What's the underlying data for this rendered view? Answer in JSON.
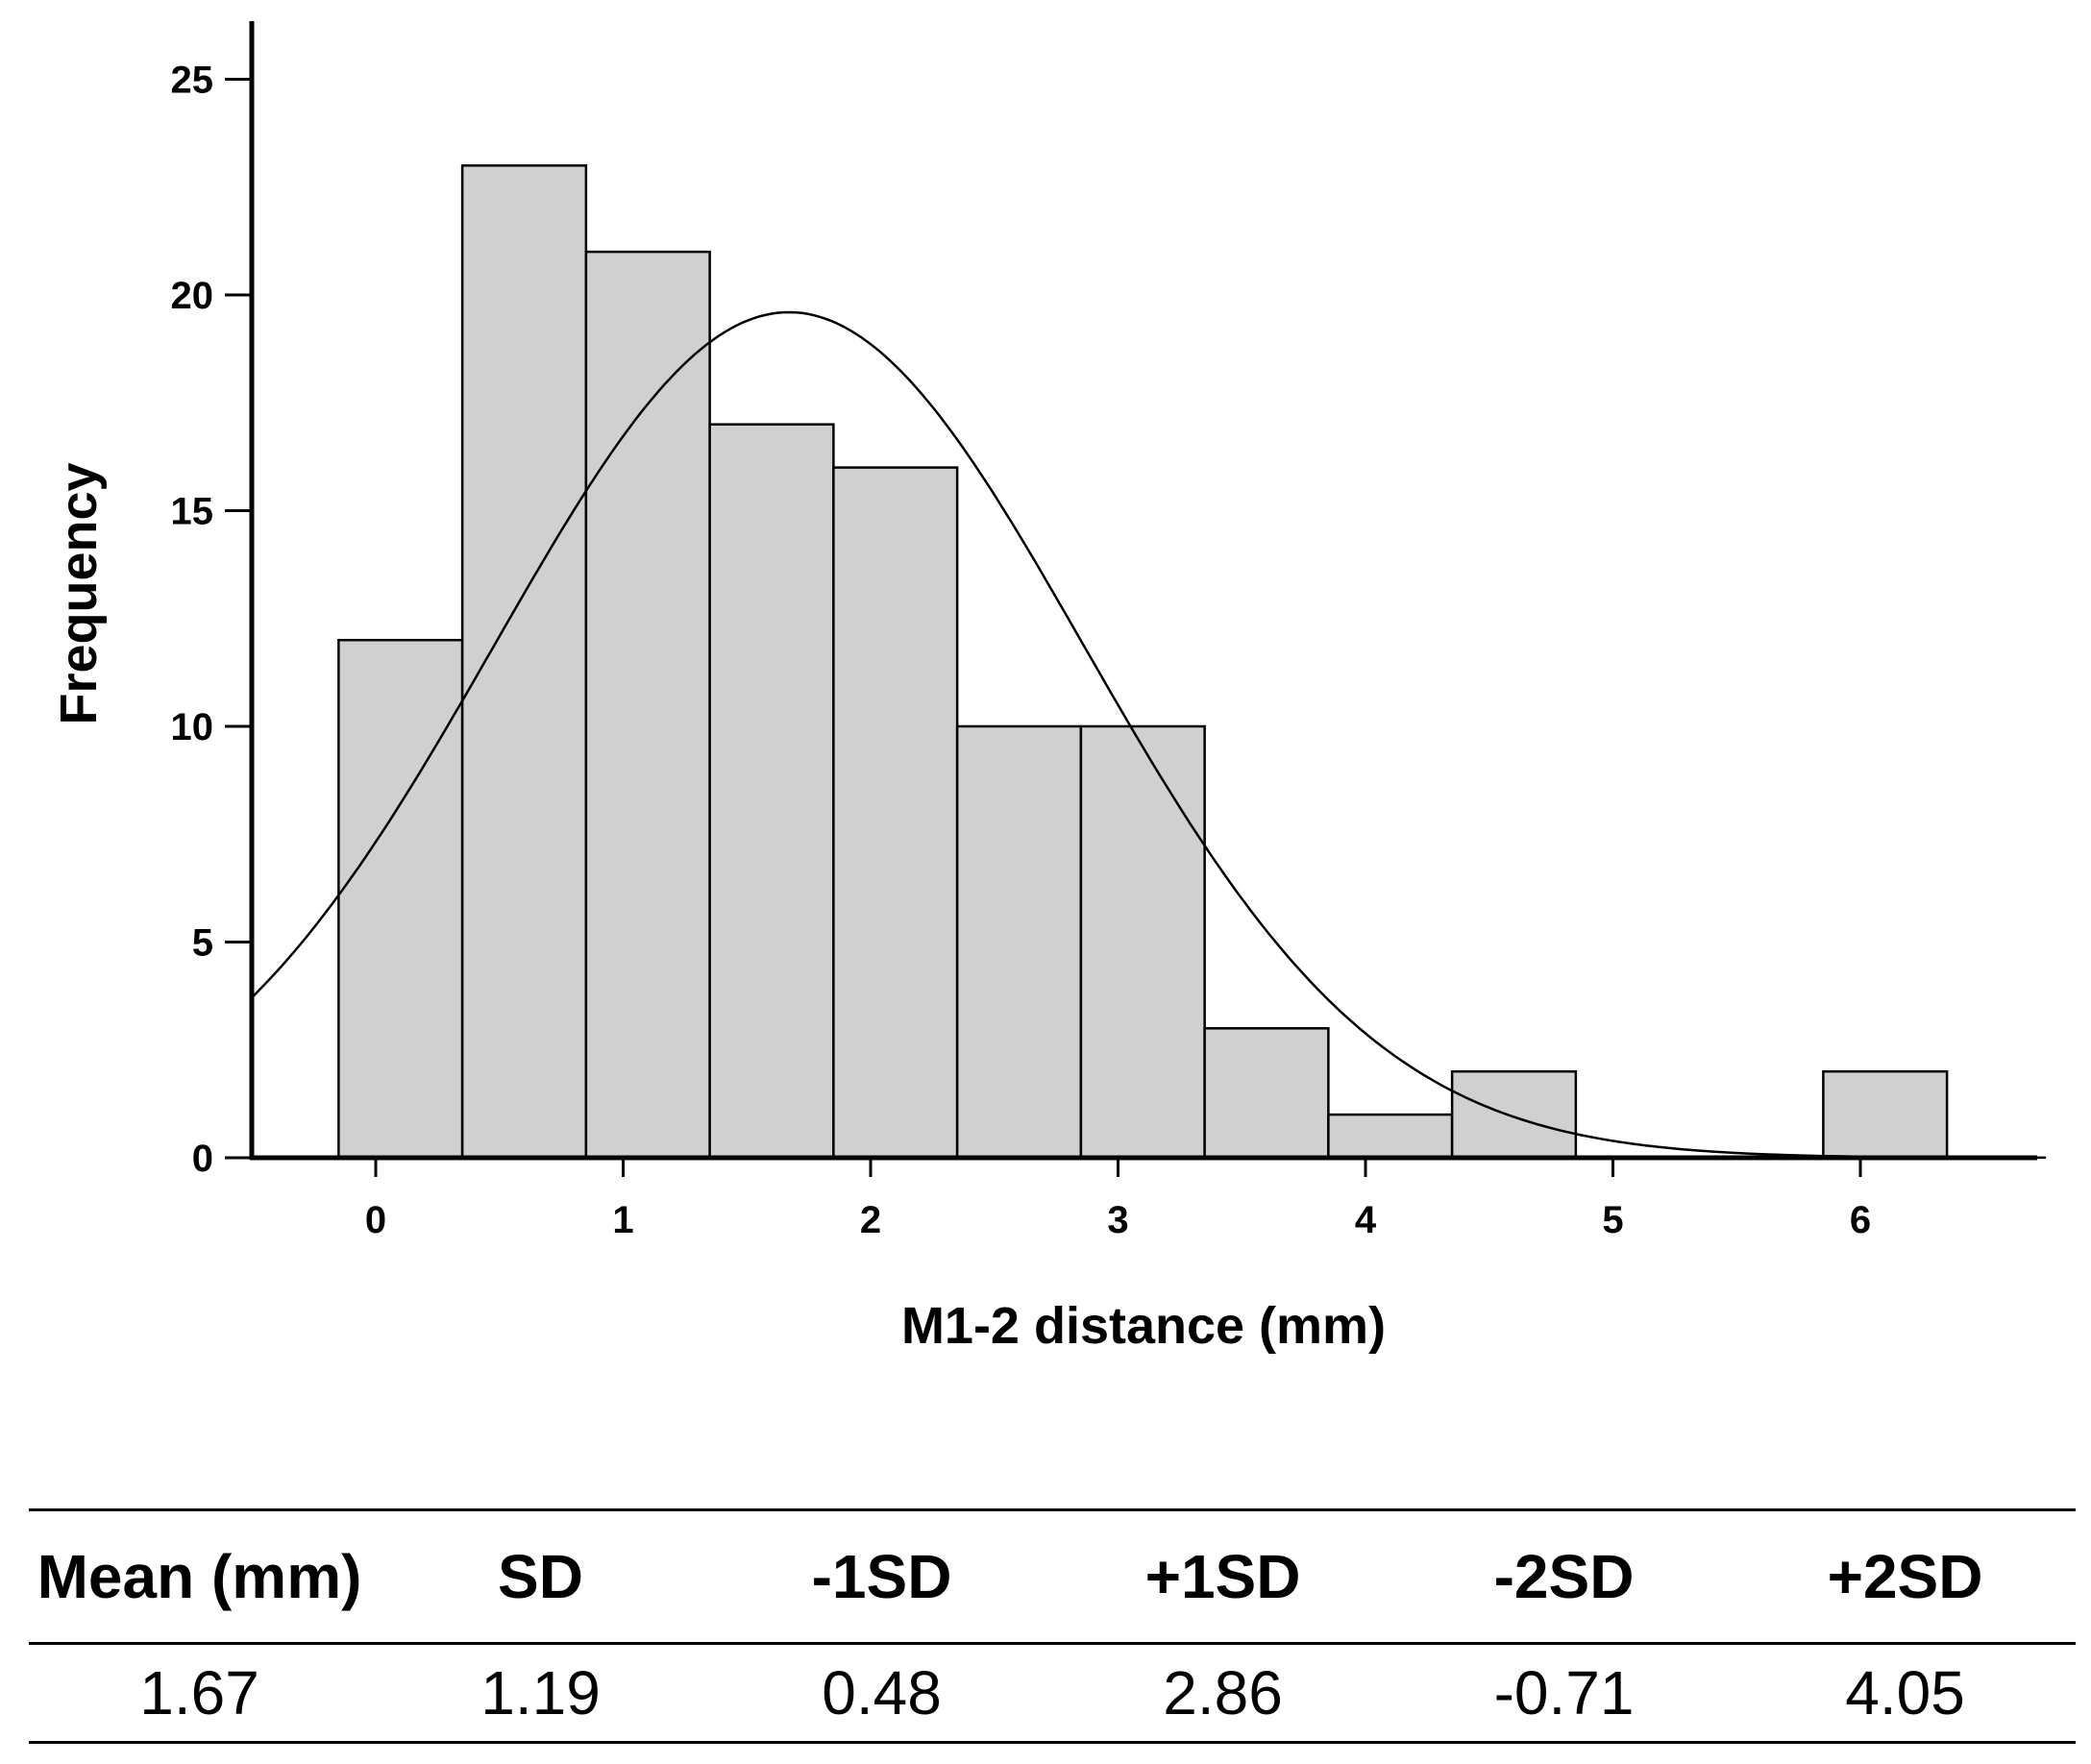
{
  "chart_data": {
    "type": "bar",
    "subtype": "histogram",
    "xlabel": "M1-2 distance (mm)",
    "ylabel": "Frequency",
    "xlim": [
      -0.5,
      6.75
    ],
    "ylim": [
      0,
      26
    ],
    "xticks": [
      0,
      1,
      2,
      3,
      4,
      5,
      6
    ],
    "yticks": [
      0,
      5,
      10,
      15,
      20,
      25
    ],
    "bin_width": 0.5,
    "bins": [
      {
        "start": -0.15,
        "end": 0.35,
        "count": 12
      },
      {
        "start": 0.35,
        "end": 0.85,
        "count": 23
      },
      {
        "start": 0.85,
        "end": 1.35,
        "count": 21
      },
      {
        "start": 1.35,
        "end": 1.85,
        "count": 17
      },
      {
        "start": 1.85,
        "end": 2.35,
        "count": 16
      },
      {
        "start": 2.35,
        "end": 2.85,
        "count": 10
      },
      {
        "start": 2.85,
        "end": 3.35,
        "count": 10
      },
      {
        "start": 3.35,
        "end": 3.85,
        "count": 3
      },
      {
        "start": 3.85,
        "end": 4.35,
        "count": 1
      },
      {
        "start": 4.35,
        "end": 4.85,
        "count": 2
      },
      {
        "start": 5.85,
        "end": 6.35,
        "count": 2
      }
    ],
    "normal_curve": {
      "mean": 1.67,
      "sd": 1.19,
      "peak_frequency": 19.6
    }
  },
  "stats_table": {
    "headers": [
      "Mean (mm)",
      "SD",
      "-1SD",
      "+1SD",
      "-2SD",
      "+2SD"
    ],
    "values": [
      "1.67",
      "1.19",
      "0.48",
      "2.86",
      "-0.71",
      "4.05"
    ]
  }
}
